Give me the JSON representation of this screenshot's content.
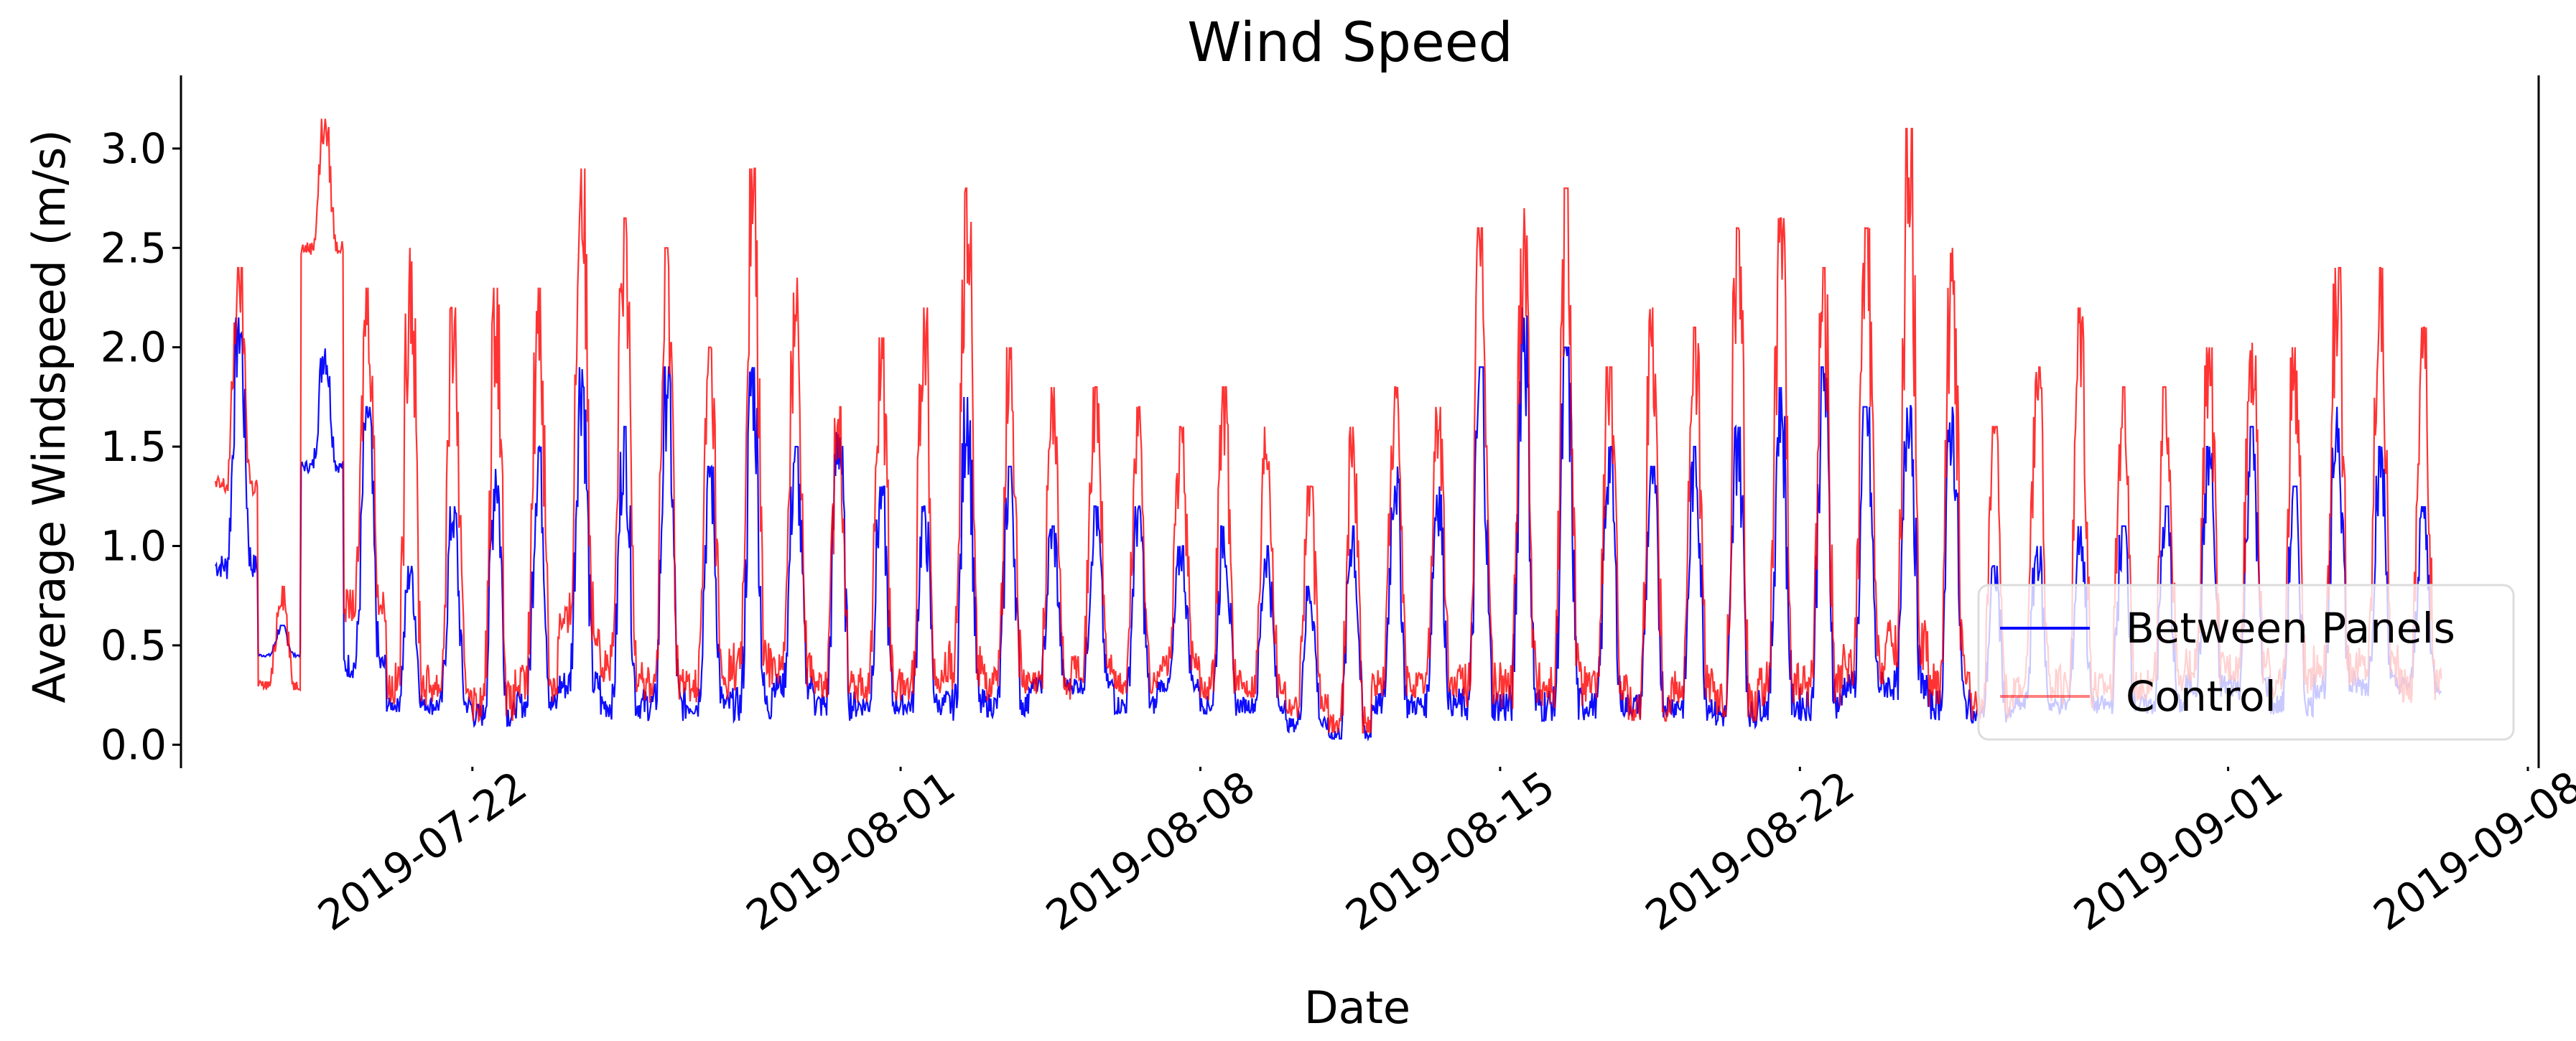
{
  "chart_data": {
    "type": "line",
    "title": "Wind Speed",
    "xlabel": "Date",
    "ylabel": "Average Windspeed (m/s)",
    "x_range": [
      "2019-07-16",
      "2019-09-08"
    ],
    "ylim": [
      -0.1,
      3.35
    ],
    "x_ticks": [
      "2019-07-22",
      "2019-08-01",
      "2019-08-08",
      "2019-08-15",
      "2019-08-22",
      "2019-09-01",
      "2019-09-08"
    ],
    "y_ticks": [
      "0.0",
      "0.5",
      "1.0",
      "1.5",
      "2.0",
      "2.5",
      "3.0"
    ],
    "y_tick_values": [
      0,
      0.5,
      1.0,
      1.5,
      2.0,
      2.5,
      3.0
    ],
    "grid": false,
    "legend_position": "lower right",
    "series": [
      {
        "name": "Between Panels",
        "color": "#0000ff",
        "points": [
          [
            "2019-07-16",
            0.9
          ],
          [
            "2019-07-16",
            2.15
          ],
          [
            "2019-07-17",
            0.45
          ],
          [
            "2019-07-17",
            0.6
          ],
          [
            "2019-07-18",
            1.4
          ],
          [
            "2019-07-18",
            2.0
          ],
          [
            "2019-07-19",
            0.4
          ],
          [
            "2019-07-19",
            1.7
          ],
          [
            "2019-07-20",
            0.2
          ],
          [
            "2019-07-20",
            0.9
          ],
          [
            "2019-07-21",
            0.2
          ],
          [
            "2019-07-21",
            1.2
          ],
          [
            "2019-07-22",
            0.15
          ],
          [
            "2019-07-22",
            1.4
          ],
          [
            "2019-07-23",
            0.2
          ],
          [
            "2019-07-23",
            1.5
          ],
          [
            "2019-07-24",
            0.3
          ],
          [
            "2019-07-24",
            1.9
          ],
          [
            "2019-07-25",
            0.2
          ],
          [
            "2019-07-25",
            1.6
          ],
          [
            "2019-07-26",
            0.2
          ],
          [
            "2019-07-26",
            1.9
          ],
          [
            "2019-07-27",
            0.2
          ],
          [
            "2019-07-27",
            1.4
          ],
          [
            "2019-07-28",
            0.2
          ],
          [
            "2019-07-28",
            1.9
          ],
          [
            "2019-07-29",
            0.3
          ],
          [
            "2019-07-29",
            1.5
          ],
          [
            "2019-07-30",
            0.2
          ],
          [
            "2019-07-30",
            1.6
          ],
          [
            "2019-07-31",
            0.2
          ],
          [
            "2019-07-31",
            1.3
          ],
          [
            "2019-08-01",
            0.2
          ],
          [
            "2019-08-01",
            1.2
          ],
          [
            "2019-08-02",
            0.2
          ],
          [
            "2019-08-02",
            1.75
          ],
          [
            "2019-08-03",
            0.2
          ],
          [
            "2019-08-03",
            1.4
          ],
          [
            "2019-08-04",
            0.3
          ],
          [
            "2019-08-04",
            1.1
          ],
          [
            "2019-08-05",
            0.3
          ],
          [
            "2019-08-05",
            1.2
          ],
          [
            "2019-08-06",
            0.2
          ],
          [
            "2019-08-06",
            1.2
          ],
          [
            "2019-08-07",
            0.3
          ],
          [
            "2019-08-07",
            1.0
          ],
          [
            "2019-08-08",
            0.2
          ],
          [
            "2019-08-08",
            1.1
          ],
          [
            "2019-08-09",
            0.2
          ],
          [
            "2019-08-09",
            1.0
          ],
          [
            "2019-08-10",
            0.1
          ],
          [
            "2019-08-10",
            0.8
          ],
          [
            "2019-08-11",
            0.05
          ],
          [
            "2019-08-11",
            1.1
          ],
          [
            "2019-08-12",
            0.2
          ],
          [
            "2019-08-12",
            1.4
          ],
          [
            "2019-08-13",
            0.2
          ],
          [
            "2019-08-13",
            1.3
          ],
          [
            "2019-08-14",
            0.2
          ],
          [
            "2019-08-14",
            1.9
          ],
          [
            "2019-08-15",
            0.2
          ],
          [
            "2019-08-15",
            2.2
          ],
          [
            "2019-08-16",
            0.2
          ],
          [
            "2019-08-16",
            2.0
          ],
          [
            "2019-08-17",
            0.2
          ],
          [
            "2019-08-17",
            1.5
          ],
          [
            "2019-08-18",
            0.2
          ],
          [
            "2019-08-18",
            1.4
          ],
          [
            "2019-08-19",
            0.2
          ],
          [
            "2019-08-19",
            1.5
          ],
          [
            "2019-08-20",
            0.15
          ],
          [
            "2019-08-20",
            1.6
          ],
          [
            "2019-08-21",
            0.2
          ],
          [
            "2019-08-21",
            1.8
          ],
          [
            "2019-08-22",
            0.2
          ],
          [
            "2019-08-22",
            1.9
          ],
          [
            "2019-08-23",
            0.3
          ],
          [
            "2019-08-23",
            1.7
          ],
          [
            "2019-08-24",
            0.3
          ],
          [
            "2019-08-24",
            1.8
          ],
          [
            "2019-08-25",
            0.2
          ],
          [
            "2019-08-25",
            1.7
          ],
          [
            "2019-08-26",
            0.15
          ],
          [
            "2019-08-26",
            0.9
          ],
          [
            "2019-08-27",
            0.2
          ],
          [
            "2019-08-27",
            1.0
          ],
          [
            "2019-08-28",
            0.2
          ],
          [
            "2019-08-28",
            1.1
          ],
          [
            "2019-08-29",
            0.2
          ],
          [
            "2019-08-29",
            1.1
          ],
          [
            "2019-08-30",
            0.2
          ],
          [
            "2019-08-30",
            1.2
          ],
          [
            "2019-08-31",
            0.3
          ],
          [
            "2019-08-31",
            1.5
          ],
          [
            "2019-09-01",
            0.3
          ],
          [
            "2019-09-01",
            1.6
          ],
          [
            "2019-09-02",
            0.2
          ],
          [
            "2019-09-02",
            1.3
          ],
          [
            "2019-09-03",
            0.3
          ],
          [
            "2019-09-03",
            1.7
          ],
          [
            "2019-09-04",
            0.3
          ],
          [
            "2019-09-04",
            1.5
          ],
          [
            "2019-09-05",
            0.3
          ],
          [
            "2019-09-05",
            1.2
          ]
        ]
      },
      {
        "name": "Control",
        "color": "#ff0000",
        "points": [
          [
            "2019-07-16",
            1.3
          ],
          [
            "2019-07-16",
            2.4
          ],
          [
            "2019-07-17",
            0.3
          ],
          [
            "2019-07-17",
            0.8
          ],
          [
            "2019-07-18",
            2.5
          ],
          [
            "2019-07-18",
            3.15
          ],
          [
            "2019-07-19",
            0.7
          ],
          [
            "2019-07-19",
            2.3
          ],
          [
            "2019-07-20",
            0.3
          ],
          [
            "2019-07-20",
            2.5
          ],
          [
            "2019-07-21",
            0.3
          ],
          [
            "2019-07-21",
            2.2
          ],
          [
            "2019-07-22",
            0.2
          ],
          [
            "2019-07-22",
            2.3
          ],
          [
            "2019-07-23",
            0.3
          ],
          [
            "2019-07-23",
            2.3
          ],
          [
            "2019-07-24",
            0.6
          ],
          [
            "2019-07-24",
            2.9
          ],
          [
            "2019-07-25",
            0.4
          ],
          [
            "2019-07-25",
            2.65
          ],
          [
            "2019-07-26",
            0.3
          ],
          [
            "2019-07-26",
            2.5
          ],
          [
            "2019-07-27",
            0.3
          ],
          [
            "2019-07-27",
            2.0
          ],
          [
            "2019-07-28",
            0.4
          ],
          [
            "2019-07-28",
            2.9
          ],
          [
            "2019-07-29",
            0.4
          ],
          [
            "2019-07-29",
            2.35
          ],
          [
            "2019-07-30",
            0.3
          ],
          [
            "2019-07-30",
            1.7
          ],
          [
            "2019-07-31",
            0.3
          ],
          [
            "2019-07-31",
            2.05
          ],
          [
            "2019-08-01",
            0.3
          ],
          [
            "2019-08-01",
            2.2
          ],
          [
            "2019-08-02",
            0.4
          ],
          [
            "2019-08-02",
            2.8
          ],
          [
            "2019-08-03",
            0.3
          ],
          [
            "2019-08-03",
            2.0
          ],
          [
            "2019-08-04",
            0.3
          ],
          [
            "2019-08-04",
            1.8
          ],
          [
            "2019-08-05",
            0.4
          ],
          [
            "2019-08-05",
            1.8
          ],
          [
            "2019-08-06",
            0.3
          ],
          [
            "2019-08-06",
            1.7
          ],
          [
            "2019-08-07",
            0.4
          ],
          [
            "2019-08-07",
            1.6
          ],
          [
            "2019-08-08",
            0.3
          ],
          [
            "2019-08-08",
            1.8
          ],
          [
            "2019-08-09",
            0.3
          ],
          [
            "2019-08-09",
            1.6
          ],
          [
            "2019-08-10",
            0.2
          ],
          [
            "2019-08-10",
            1.3
          ],
          [
            "2019-08-11",
            0.1
          ],
          [
            "2019-08-11",
            1.6
          ],
          [
            "2019-08-12",
            0.3
          ],
          [
            "2019-08-12",
            1.8
          ],
          [
            "2019-08-13",
            0.3
          ],
          [
            "2019-08-13",
            1.7
          ],
          [
            "2019-08-14",
            0.3
          ],
          [
            "2019-08-14",
            2.6
          ],
          [
            "2019-08-15",
            0.3
          ],
          [
            "2019-08-15",
            2.7
          ],
          [
            "2019-08-16",
            0.3
          ],
          [
            "2019-08-16",
            2.8
          ],
          [
            "2019-08-17",
            0.3
          ],
          [
            "2019-08-17",
            1.9
          ],
          [
            "2019-08-18",
            0.2
          ],
          [
            "2019-08-18",
            2.2
          ],
          [
            "2019-08-19",
            0.3
          ],
          [
            "2019-08-19",
            2.1
          ],
          [
            "2019-08-20",
            0.2
          ],
          [
            "2019-08-20",
            2.6
          ],
          [
            "2019-08-21",
            0.3
          ],
          [
            "2019-08-21",
            2.65
          ],
          [
            "2019-08-22",
            0.3
          ],
          [
            "2019-08-22",
            2.4
          ],
          [
            "2019-08-23",
            0.4
          ],
          [
            "2019-08-23",
            2.6
          ],
          [
            "2019-08-24",
            0.5
          ],
          [
            "2019-08-24",
            3.1
          ],
          [
            "2019-08-25",
            0.3
          ],
          [
            "2019-08-25",
            2.5
          ],
          [
            "2019-08-26",
            0.2
          ],
          [
            "2019-08-26",
            1.6
          ],
          [
            "2019-08-27",
            0.3
          ],
          [
            "2019-08-27",
            1.9
          ],
          [
            "2019-08-28",
            0.3
          ],
          [
            "2019-08-28",
            2.2
          ],
          [
            "2019-08-29",
            0.3
          ],
          [
            "2019-08-29",
            1.8
          ],
          [
            "2019-08-30",
            0.3
          ],
          [
            "2019-08-30",
            1.8
          ],
          [
            "2019-08-31",
            0.4
          ],
          [
            "2019-08-31",
            2.0
          ],
          [
            "2019-09-01",
            0.4
          ],
          [
            "2019-09-01",
            2.1
          ],
          [
            "2019-09-02",
            0.3
          ],
          [
            "2019-09-02",
            2.0
          ],
          [
            "2019-09-03",
            0.4
          ],
          [
            "2019-09-03",
            2.4
          ],
          [
            "2019-09-04",
            0.4
          ],
          [
            "2019-09-04",
            2.4
          ],
          [
            "2019-09-05",
            0.3
          ],
          [
            "2019-09-05",
            2.1
          ]
        ]
      }
    ]
  }
}
